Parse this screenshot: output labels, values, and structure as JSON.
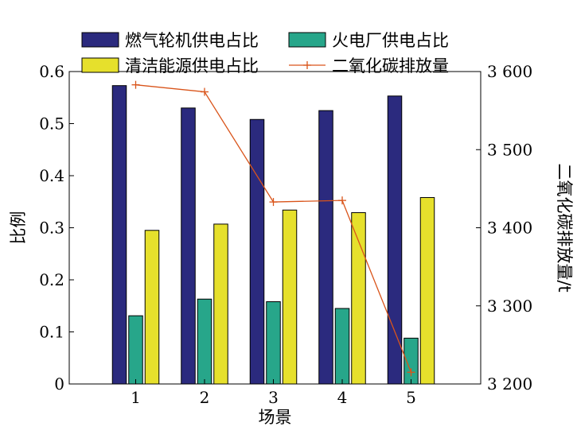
{
  "chart_data": {
    "type": "bar",
    "categories": [
      "1",
      "2",
      "3",
      "4",
      "5"
    ],
    "xlabel": "场景",
    "ylabel_left": "比例",
    "ylabel_right": "二氧化碳排放量/t",
    "ylim_left": [
      0,
      0.6
    ],
    "yticks_left": [
      "0",
      "0.1",
      "0.2",
      "0.3",
      "0.4",
      "0.5",
      "0.6"
    ],
    "ylim_right": [
      3200,
      3600
    ],
    "yticks_right": [
      "3 200",
      "3 300",
      "3 400",
      "3 500",
      "3 600"
    ],
    "legend_position": "top",
    "grid": false,
    "series": [
      {
        "name": "燃气轮机供电占比",
        "kind": "bar",
        "axis": "left",
        "color": "#2b2a7e",
        "values": [
          0.573,
          0.53,
          0.508,
          0.525,
          0.553
        ]
      },
      {
        "name": "火电厂供电占比",
        "kind": "bar",
        "axis": "left",
        "color": "#27a68a",
        "values": [
          0.131,
          0.163,
          0.158,
          0.145,
          0.088
        ]
      },
      {
        "name": "清洁能源供电占比",
        "kind": "bar",
        "axis": "left",
        "color": "#e6e02c",
        "values": [
          0.295,
          0.307,
          0.334,
          0.329,
          0.358
        ]
      },
      {
        "name": "二氧化碳排放量",
        "kind": "line",
        "axis": "right",
        "color": "#d9541a",
        "values": [
          3583,
          3574,
          3433,
          3435,
          3215
        ]
      }
    ]
  }
}
